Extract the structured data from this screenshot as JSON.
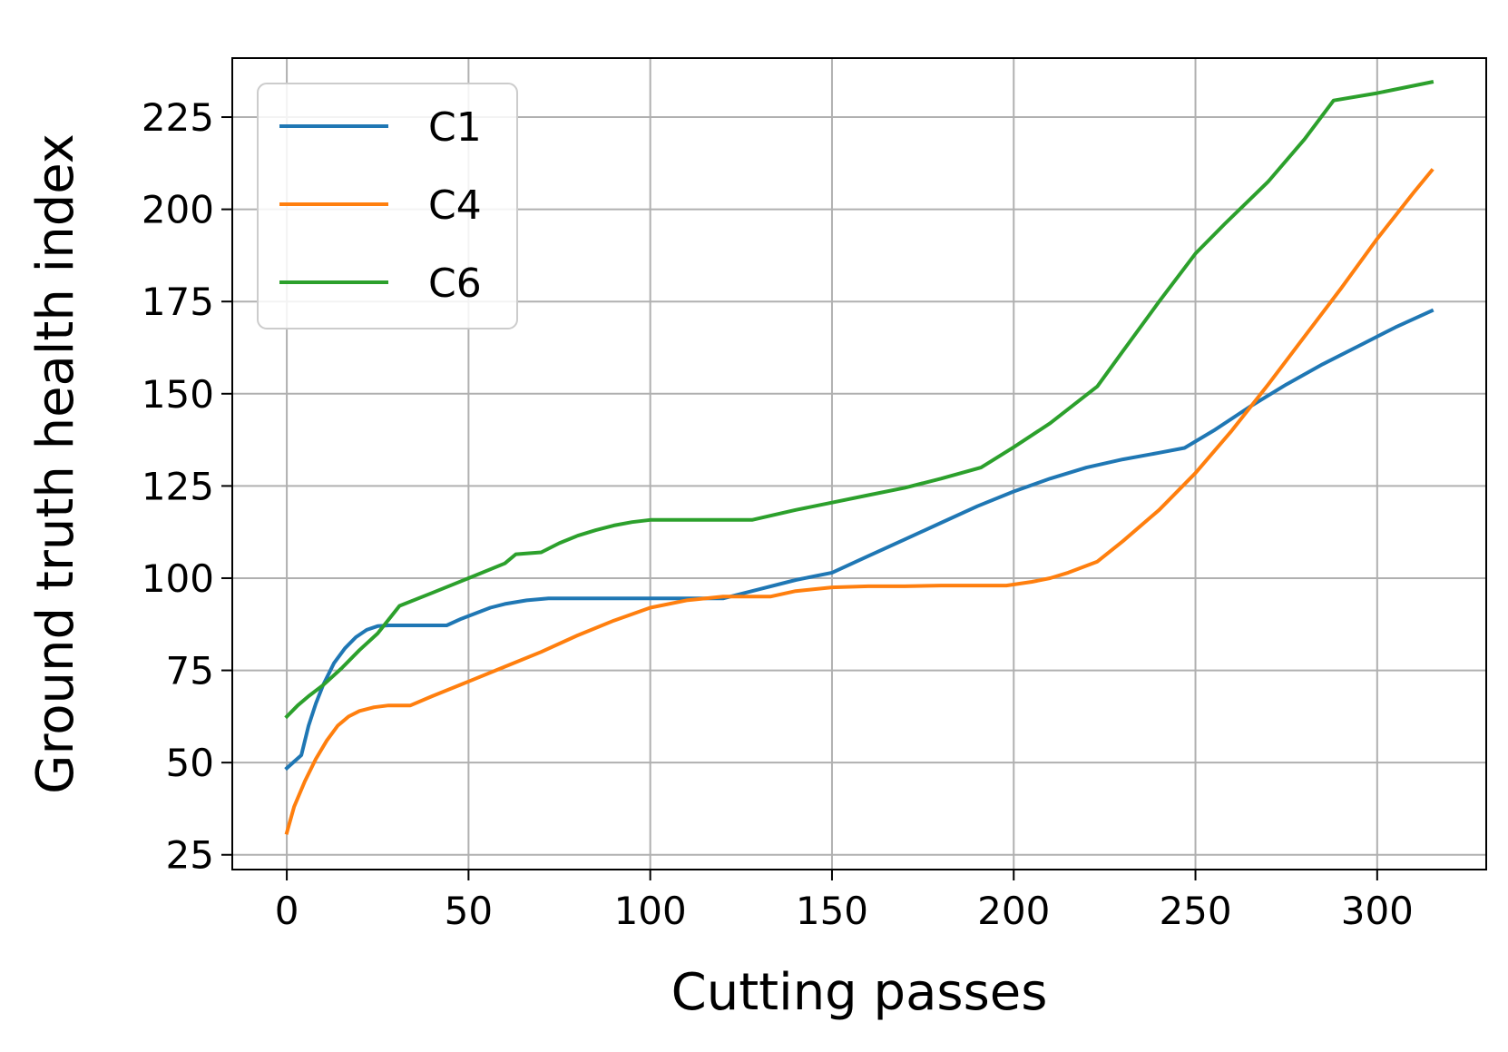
{
  "chart_data": {
    "type": "line",
    "title": "",
    "xlabel": "Cutting passes",
    "ylabel": "Ground truth health index",
    "xlim": [
      -15,
      330
    ],
    "ylim": [
      21,
      241
    ],
    "xticks": [
      0,
      50,
      100,
      150,
      200,
      250,
      300
    ],
    "yticks": [
      25,
      50,
      75,
      100,
      125,
      150,
      175,
      200,
      225
    ],
    "grid": true,
    "legend_position": "upper-left",
    "series": [
      {
        "name": "C1",
        "color": "#1f77b4",
        "points": [
          [
            0,
            48.5
          ],
          [
            4,
            52
          ],
          [
            6,
            60
          ],
          [
            8,
            66
          ],
          [
            10,
            71
          ],
          [
            13,
            77
          ],
          [
            16,
            81
          ],
          [
            19,
            84
          ],
          [
            22,
            86
          ],
          [
            25,
            87
          ],
          [
            28,
            87.2
          ],
          [
            35,
            87.2
          ],
          [
            44,
            87.2
          ],
          [
            48,
            89
          ],
          [
            52,
            90.5
          ],
          [
            56,
            92
          ],
          [
            60,
            93
          ],
          [
            66,
            94
          ],
          [
            72,
            94.5
          ],
          [
            80,
            94.5
          ],
          [
            90,
            94.5
          ],
          [
            100,
            94.5
          ],
          [
            110,
            94.5
          ],
          [
            120,
            94.5
          ],
          [
            130,
            97
          ],
          [
            140,
            99.5
          ],
          [
            150,
            101.5
          ],
          [
            160,
            106
          ],
          [
            170,
            110.5
          ],
          [
            180,
            115
          ],
          [
            190,
            119.5
          ],
          [
            200,
            123.5
          ],
          [
            210,
            127
          ],
          [
            220,
            130
          ],
          [
            230,
            132.2
          ],
          [
            240,
            134
          ],
          [
            247,
            135.3
          ],
          [
            255,
            140
          ],
          [
            265,
            146.5
          ],
          [
            275,
            152.5
          ],
          [
            285,
            158
          ],
          [
            295,
            163
          ],
          [
            305,
            168
          ],
          [
            315,
            172.5
          ]
        ]
      },
      {
        "name": "C4",
        "color": "#ff7f0e",
        "points": [
          [
            0,
            31
          ],
          [
            2,
            38
          ],
          [
            5,
            45
          ],
          [
            8,
            51
          ],
          [
            11,
            56
          ],
          [
            14,
            60
          ],
          [
            17,
            62.5
          ],
          [
            20,
            64
          ],
          [
            24,
            65
          ],
          [
            28,
            65.5
          ],
          [
            34,
            65.5
          ],
          [
            40,
            68
          ],
          [
            50,
            72
          ],
          [
            60,
            76
          ],
          [
            70,
            80
          ],
          [
            80,
            84.5
          ],
          [
            90,
            88.5
          ],
          [
            100,
            92
          ],
          [
            110,
            94
          ],
          [
            120,
            95
          ],
          [
            130,
            95
          ],
          [
            133,
            95
          ],
          [
            140,
            96.5
          ],
          [
            150,
            97.5
          ],
          [
            160,
            97.8
          ],
          [
            170,
            97.8
          ],
          [
            180,
            98
          ],
          [
            190,
            98
          ],
          [
            198,
            98
          ],
          [
            205,
            99
          ],
          [
            210,
            100
          ],
          [
            215,
            101.5
          ],
          [
            223,
            104.5
          ],
          [
            230,
            110
          ],
          [
            240,
            118.5
          ],
          [
            250,
            128.5
          ],
          [
            260,
            140
          ],
          [
            270,
            152.5
          ],
          [
            280,
            165.5
          ],
          [
            290,
            178.5
          ],
          [
            300,
            192
          ],
          [
            310,
            204.5
          ],
          [
            315,
            210.5
          ]
        ]
      },
      {
        "name": "C6",
        "color": "#2ca02c",
        "points": [
          [
            0,
            62.5
          ],
          [
            3,
            65.5
          ],
          [
            6,
            68
          ],
          [
            10,
            71
          ],
          [
            15,
            75.5
          ],
          [
            20,
            80.5
          ],
          [
            25,
            85
          ],
          [
            31,
            92.5
          ],
          [
            40,
            96
          ],
          [
            50,
            100
          ],
          [
            60,
            104
          ],
          [
            63,
            106.5
          ],
          [
            70,
            107
          ],
          [
            75,
            109.5
          ],
          [
            80,
            111.5
          ],
          [
            85,
            113
          ],
          [
            90,
            114.3
          ],
          [
            95,
            115.2
          ],
          [
            100,
            115.8
          ],
          [
            110,
            115.8
          ],
          [
            128,
            115.8
          ],
          [
            140,
            118.5
          ],
          [
            150,
            120.5
          ],
          [
            160,
            122.5
          ],
          [
            170,
            124.5
          ],
          [
            180,
            127
          ],
          [
            191,
            130
          ],
          [
            200,
            135.5
          ],
          [
            210,
            142
          ],
          [
            223,
            152
          ],
          [
            230,
            161.5
          ],
          [
            240,
            175
          ],
          [
            250,
            188
          ],
          [
            258,
            196
          ],
          [
            270,
            207.5
          ],
          [
            280,
            219
          ],
          [
            288,
            229.5
          ],
          [
            300,
            231.5
          ],
          [
            315,
            234.5
          ]
        ]
      }
    ]
  }
}
